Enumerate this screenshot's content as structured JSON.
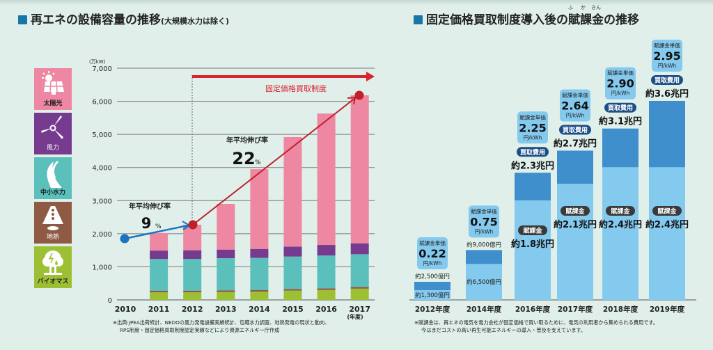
{
  "left_panel": {
    "title": "再エネの設備容量の推移",
    "subtitle": "(大規模水力は除く)",
    "legend": [
      {
        "label": "太陽光",
        "icon": "solar-panel-icon",
        "color": "#ee87a2"
      },
      {
        "label": "風力",
        "icon": "wind-turbine-icon",
        "color": "#763b8f"
      },
      {
        "label": "中小水力",
        "icon": "river-icon",
        "color": "#5bbfbc"
      },
      {
        "label": "地熱",
        "icon": "volcano-icon",
        "color": "#8f5a44"
      },
      {
        "label": "バイオマス",
        "icon": "tree-icon",
        "color": "#9dbf34"
      }
    ],
    "fit_label": "固定価格買取制度",
    "growth_before": {
      "label": "年平均伸び率",
      "value": "9",
      "unit": "%"
    },
    "growth_after": {
      "label": "年平均伸び率",
      "value": "22",
      "unit": "%"
    },
    "note_lines": [
      "※出典:JPEA出荷統計、NEDOの風力発電設備実績統計、包蔵水力調査、地熱発電の現状と動向、",
      "RPS制度・固定価格買取制度認定実績などにより資源エネルギー庁作成"
    ]
  },
  "right_panel": {
    "title_pre": "固定価格買取制度導入後の",
    "title_ruby_word": "賦課金",
    "title_post": "の推移",
    "ruby": [
      "ふ",
      "か",
      "きん"
    ],
    "note_lines": [
      "※賦課金は、再エネの電気を電力会社が固定価格で買い取るために、電気の利用者から集められる費用です。",
      "今はまだコストの高い再生可能エネルギーの導入・普及を支えています。"
    ]
  },
  "chart_data": [
    {
      "type": "bar",
      "stacked": true,
      "title": "再エネの設備容量の推移(大規模水力は除く)",
      "ylabel": "(万kW)",
      "xlabel": "(年度)",
      "ylim": [
        0,
        7000
      ],
      "yticks": [
        "0",
        "1,000",
        "2,000",
        "3,000",
        "4,000",
        "5,000",
        "6,000",
        "7,000"
      ],
      "ytick_values": [
        0,
        1000,
        2000,
        3000,
        4000,
        5000,
        6000,
        7000
      ],
      "grid": true,
      "categories": [
        "2010",
        "2011",
        "2012",
        "2013",
        "2014",
        "2015",
        "2016",
        "2017"
      ],
      "series": [
        {
          "name": "バイオマス",
          "color": "#9dbf34",
          "values": [
            null,
            230,
            230,
            240,
            250,
            280,
            300,
            340
          ]
        },
        {
          "name": "地熱",
          "color": "#8f5a44",
          "values": [
            null,
            50,
            50,
            50,
            50,
            50,
            50,
            50
          ]
        },
        {
          "name": "中小水力",
          "color": "#5bbfbc",
          "values": [
            null,
            960,
            960,
            970,
            970,
            980,
            990,
            990
          ]
        },
        {
          "name": "風力",
          "color": "#763b8f",
          "values": [
            null,
            250,
            260,
            260,
            270,
            300,
            320,
            330
          ]
        },
        {
          "name": "太陽光",
          "color": "#ee87a2",
          "values": [
            null,
            530,
            770,
            1380,
            2410,
            3310,
            3970,
            4470
          ]
        }
      ],
      "totals": [
        1800,
        2020,
        2270,
        2900,
        3950,
        4920,
        5630,
        6180
      ],
      "annotations": [
        {
          "text": "年平均伸び率 9%",
          "from": "2010",
          "to": "2012",
          "color": "#1a75c0"
        },
        {
          "text": "年平均伸び率 22%",
          "from": "2012",
          "to": "2017",
          "color": "#c0202a"
        },
        {
          "text": "固定価格買取制度",
          "start": "2012",
          "color": "#d9232e"
        }
      ]
    },
    {
      "type": "bar",
      "stacked": true,
      "title": "固定価格買取制度導入後の賦課金の推移",
      "categories": [
        "2012年度",
        "2014年度",
        "2016年度",
        "2017年度",
        "2018年度",
        "2019年度"
      ],
      "series": [
        {
          "name": "賦課金",
          "color": "#84c9ee",
          "values": [
            0.13,
            0.65,
            1.8,
            2.1,
            2.4,
            2.4
          ],
          "unit": "兆円"
        },
        {
          "name": "買取費用(超過分)",
          "color": "#3f8fcc",
          "values": [
            0.12,
            0.25,
            0.5,
            0.6,
            0.7,
            1.2
          ],
          "unit": "兆円"
        }
      ],
      "purchase_cost_totals": [
        0.25,
        0.9,
        2.3,
        2.7,
        3.1,
        3.6
      ],
      "ylim": [
        0,
        3.6
      ],
      "surcharge_unit_price": [
        "0.22",
        "0.75",
        "2.25",
        "2.64",
        "2.90",
        "2.95"
      ],
      "unit_price_unit": "円/kWh",
      "unit_price_label": "賦課金単価",
      "purchase_label": "買取費用",
      "surcharge_label": "賦課金",
      "purchase_texts": [
        "約2,500億円",
        "約9,000億円",
        "約2.3兆円",
        "約2.7兆円",
        "約3.1兆円",
        "約3.6兆円"
      ],
      "surcharge_texts": [
        "約1,300億円",
        "約6,500億円",
        "約1.8兆円",
        "約2.1兆円",
        "約2.4兆円",
        "約2.4兆円"
      ]
    }
  ]
}
